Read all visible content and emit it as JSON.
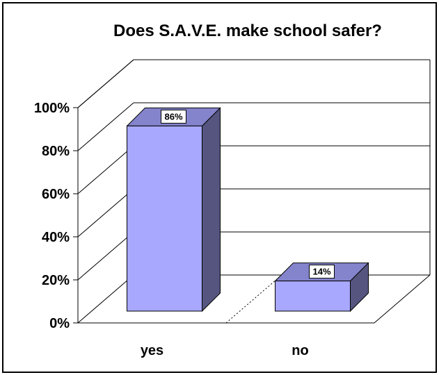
{
  "chart_data": {
    "type": "bar",
    "title": "Does S.A.V.E. make school safer?",
    "categories": [
      "yes",
      "no"
    ],
    "values": [
      86,
      14
    ],
    "data_labels": [
      "86%",
      "14%"
    ],
    "yticks": [
      "0%",
      "20%",
      "40%",
      "60%",
      "80%",
      "100%"
    ],
    "ylim": [
      0,
      100
    ],
    "xlabel": "",
    "ylabel": "",
    "grid": true,
    "style": "3d-column",
    "colors": {
      "bar_front": "#a8a8ff",
      "bar_top": "#8484cc",
      "bar_side": "#555580",
      "label_bg": "#ffffff"
    }
  }
}
